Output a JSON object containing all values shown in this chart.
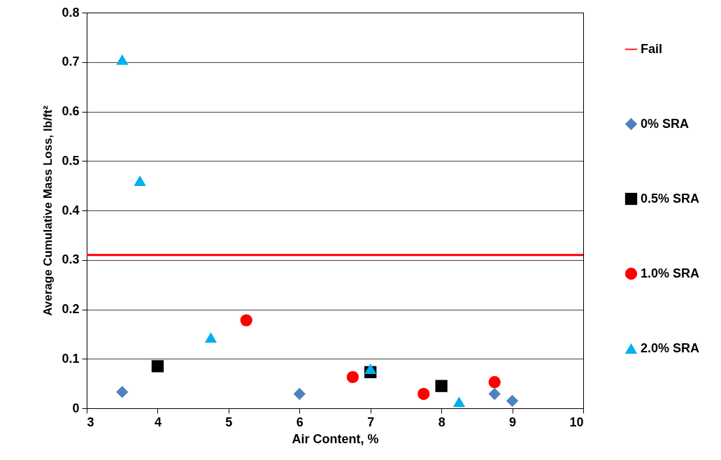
{
  "chart_data": {
    "type": "scatter",
    "xlabel": "Air Content, %",
    "ylabel": "Average Cumulative Mass Loss, lb/ft²",
    "xlim": [
      3,
      10
    ],
    "xticks": [
      3,
      4,
      5,
      6,
      7,
      8,
      9,
      10
    ],
    "ylim": [
      0,
      0.8
    ],
    "yticks": [
      0,
      0.1,
      0.2,
      0.3,
      0.4,
      0.5,
      0.6,
      0.7,
      0.8
    ],
    "grid": "y",
    "legend": "right",
    "ref_lines": [
      {
        "axis": "y",
        "value": 0.31,
        "label": "Fail",
        "color": "#ff0000",
        "line_style": "solid"
      }
    ],
    "series": [
      {
        "name": "0% SRA",
        "color": "#4f81bd",
        "marker": "diamond",
        "x": [
          3.5,
          6,
          8.75,
          9
        ],
        "values": [
          0.033,
          0.029,
          0.029,
          0.015
        ]
      },
      {
        "name": "0.5% SRA",
        "color": "#000000",
        "marker": "square",
        "x": [
          4,
          7,
          8
        ],
        "values": [
          0.085,
          0.073,
          0.045
        ]
      },
      {
        "name": "1.0% SRA",
        "color": "#ff0000",
        "marker": "circle",
        "x": [
          5.25,
          6.75,
          7.75,
          8.75
        ],
        "values": [
          0.178,
          0.063,
          0.029,
          0.053
        ]
      },
      {
        "name": "2.0% SRA",
        "color": "#00b0f0",
        "marker": "triangle",
        "x": [
          3.5,
          3.75,
          4.75,
          7,
          8.25
        ],
        "values": [
          0.705,
          0.46,
          0.143,
          0.08,
          0.013
        ]
      }
    ]
  }
}
